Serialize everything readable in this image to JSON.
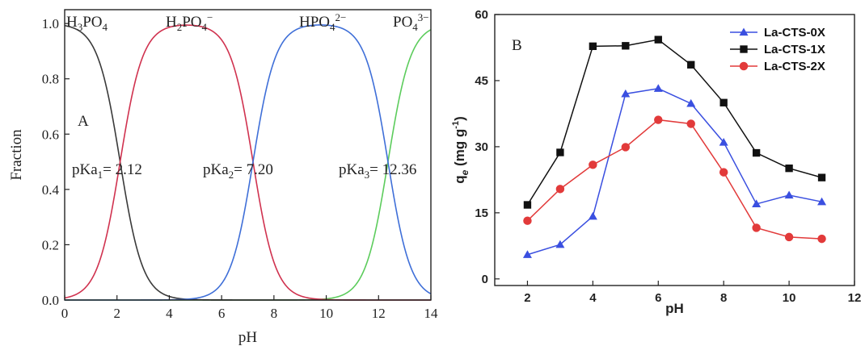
{
  "chart_data": [
    {
      "type": "line",
      "panel_label": "A",
      "xlabel": "pH",
      "ylabel": "Fraction",
      "xlim": [
        0,
        14
      ],
      "ylim": [
        0,
        1.05
      ],
      "xticks": [
        "0",
        "2",
        "4",
        "6",
        "8",
        "10",
        "12",
        "14"
      ],
      "yticks": [
        "0.0",
        "0.2",
        "0.4",
        "0.6",
        "0.8",
        "1.0"
      ],
      "pKa": [
        2.12,
        7.2,
        12.36
      ],
      "series": [
        {
          "name": "H3PO4",
          "color": "#3a3a3a"
        },
        {
          "name": "H2PO4−",
          "color": "#d0324f"
        },
        {
          "name": "HPO42−",
          "color": "#3f6fd8"
        },
        {
          "name": "PO43−",
          "color": "#5ccc5c"
        }
      ],
      "species_labels": [
        {
          "base": "H",
          "sub1": "3",
          "mid": "PO",
          "sub2": "4",
          "sup": ""
        },
        {
          "base": "H",
          "sub1": "2",
          "mid": "PO",
          "sub2": "4",
          "sup": "−"
        },
        {
          "base": "HPO",
          "sub1": "",
          "mid": "",
          "sub2": "4",
          "sup": "2−"
        },
        {
          "base": "PO",
          "sub1": "",
          "mid": "",
          "sub2": "4",
          "sup": "3−"
        }
      ],
      "pka_labels": [
        {
          "pre": "pKa",
          "sub": "1",
          "post": "= 2.12"
        },
        {
          "pre": "pKa",
          "sub": "2",
          "post": "= 7.20"
        },
        {
          "pre": "pKa",
          "sub": "3",
          "post": "= 12.36"
        }
      ]
    },
    {
      "type": "line",
      "panel_label": "B",
      "xlabel": "pH",
      "ylabel_main": "q",
      "ylabel_sub": "e",
      "ylabel_unit": " (mg g",
      "ylabel_sup": "-1",
      "ylabel_end": ")",
      "xlim": [
        1,
        12
      ],
      "ylim": [
        -1.5,
        60
      ],
      "xticks": [
        "2",
        "4",
        "6",
        "8",
        "10",
        "12"
      ],
      "yticks": [
        "0",
        "15",
        "30",
        "45",
        "60"
      ],
      "x": [
        2,
        3,
        4,
        5,
        6,
        7,
        8,
        9,
        10,
        11
      ],
      "legend_position": "top-right",
      "series": [
        {
          "name": "La-CTS-0X",
          "color": "#3a4fe0",
          "marker": "triangle",
          "values": [
            5.5,
            7.8,
            14.2,
            42.0,
            43.2,
            39.8,
            31.0,
            17.0,
            19.0,
            17.5
          ]
        },
        {
          "name": "La-CTS-1X",
          "color": "#111111",
          "marker": "square",
          "values": [
            16.8,
            28.7,
            52.8,
            52.9,
            54.3,
            48.6,
            40.0,
            28.6,
            25.1,
            23.0
          ]
        },
        {
          "name": "La-CTS-2X",
          "color": "#e23a3a",
          "marker": "circle",
          "values": [
            13.2,
            20.4,
            25.9,
            29.9,
            36.1,
            35.2,
            24.2,
            11.6,
            9.5,
            9.1
          ]
        }
      ]
    }
  ]
}
